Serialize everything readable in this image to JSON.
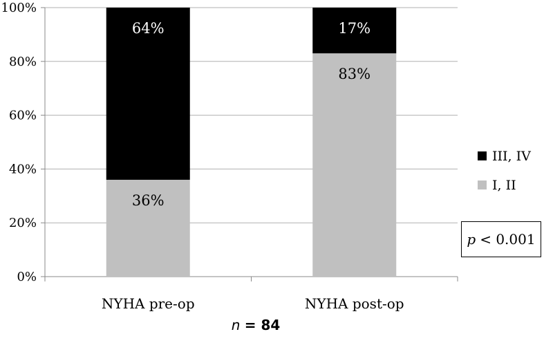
{
  "chart_data": {
    "type": "bar",
    "stacked": true,
    "percent_stacked": true,
    "categories": [
      "NYHA pre-op",
      "NYHA post-op"
    ],
    "series": [
      {
        "name": "I, II",
        "values": [
          36,
          83
        ],
        "labels": [
          "36%",
          "83%"
        ],
        "color": "#c0c0c0"
      },
      {
        "name": "III, IV",
        "values": [
          64,
          17
        ],
        "labels": [
          "64%",
          "17%"
        ],
        "color": "#000000"
      }
    ],
    "yticks": [
      "0%",
      "20%",
      "40%",
      "60%",
      "80%",
      "100%"
    ],
    "ylim": [
      0,
      100
    ],
    "grid": true,
    "legend": {
      "placement": "right",
      "items": [
        "III, IV",
        "I, II"
      ]
    },
    "annotation": {
      "p_symbol": "p",
      "p_text": "< 0.001"
    },
    "sample": {
      "n_symbol": "n",
      "n_text": "= 84"
    }
  }
}
